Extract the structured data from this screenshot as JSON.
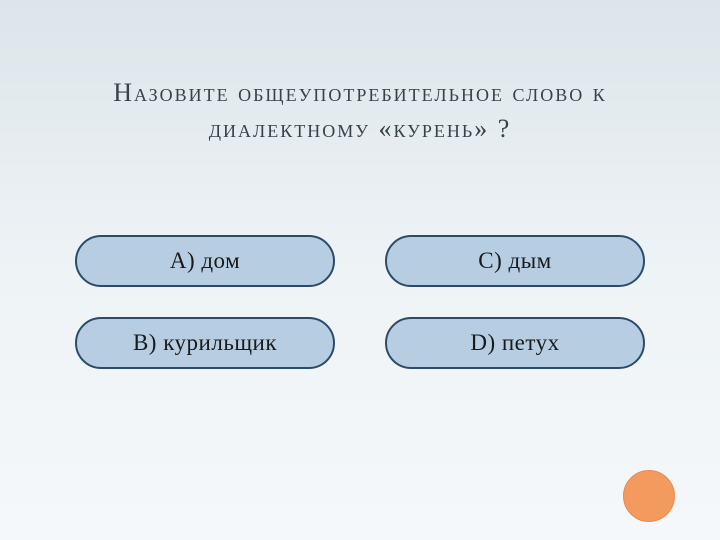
{
  "question": {
    "title": "Назовите общеупотребительное слово к диалектному «курень» ?",
    "title_fontsize": 26,
    "title_color": "#39424a"
  },
  "options": [
    {
      "label": "А)  дом"
    },
    {
      "label": "С)  дым"
    },
    {
      "label": "В)  курильщик"
    },
    {
      "label": "D)  петух"
    }
  ],
  "styling": {
    "background_gradient_top": "#dde5ea",
    "background_gradient_bottom": "#f5f8fa",
    "option_bg_color": "#b6cde2",
    "option_border_color": "#2d4a6b",
    "option_border_radius": 26,
    "option_fontsize": 23,
    "option_text_color": "#1a1a1a",
    "circle_color": "#f39b5f",
    "circle_diameter": 52
  }
}
